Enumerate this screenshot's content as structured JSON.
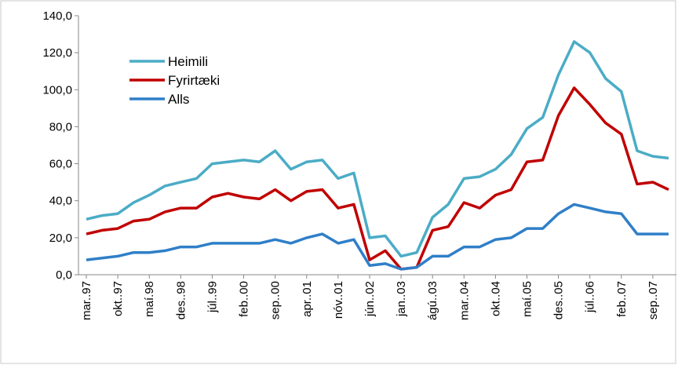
{
  "chart_data": {
    "type": "line",
    "categories": [
      "mar..97",
      null,
      "okt..97",
      null,
      "maí.98",
      null,
      "des..98",
      null,
      "júl..99",
      null,
      "feb..00",
      null,
      "sep..00",
      null,
      "apr..01",
      null,
      "nóv..01",
      null,
      "jún..02",
      null,
      "jan..03",
      null,
      "ágú..03",
      null,
      "mar..04",
      null,
      "okt..04",
      null,
      "maí.05",
      null,
      "des..05",
      null,
      "júl..06",
      null,
      "feb..07",
      null,
      "sep..07",
      null
    ],
    "series": [
      {
        "name": "Heimili",
        "color": "#4bacc6",
        "values": [
          30,
          32,
          33,
          39,
          43,
          48,
          50,
          52,
          60,
          61,
          62,
          61,
          67,
          57,
          61,
          62,
          52,
          55,
          20,
          21,
          10,
          12,
          31,
          38,
          52,
          53,
          57,
          65,
          79,
          85,
          108,
          126,
          120,
          106,
          99,
          67,
          64,
          63
        ]
      },
      {
        "name": "Fyrirtæki",
        "color": "#c00000",
        "values": [
          22,
          24,
          25,
          29,
          30,
          34,
          36,
          36,
          42,
          44,
          42,
          41,
          46,
          40,
          45,
          46,
          36,
          38,
          8,
          13,
          3,
          4,
          24,
          26,
          39,
          36,
          43,
          46,
          61,
          62,
          86,
          101,
          92,
          82,
          76,
          49,
          50,
          46
        ]
      },
      {
        "name": "Alls",
        "color": "#2f7fc8",
        "values": [
          8,
          9,
          10,
          12,
          12,
          13,
          15,
          15,
          17,
          17,
          17,
          17,
          19,
          17,
          20,
          22,
          17,
          19,
          5,
          6,
          3,
          4,
          10,
          10,
          15,
          15,
          19,
          20,
          25,
          25,
          33,
          38,
          36,
          34,
          33,
          22,
          22,
          22
        ]
      }
    ],
    "ylim": [
      0,
      140
    ],
    "yticks": [
      {
        "value": 0,
        "label": "0,0"
      },
      {
        "value": 20,
        "label": "20,0"
      },
      {
        "value": 40,
        "label": "40,0"
      },
      {
        "value": 60,
        "label": "60,0"
      },
      {
        "value": 80,
        "label": "80,0"
      },
      {
        "value": 100,
        "label": "100,0"
      },
      {
        "value": 120,
        "label": "120,0"
      },
      {
        "value": 140,
        "label": "140,0"
      }
    ],
    "legend": "upper-left"
  }
}
